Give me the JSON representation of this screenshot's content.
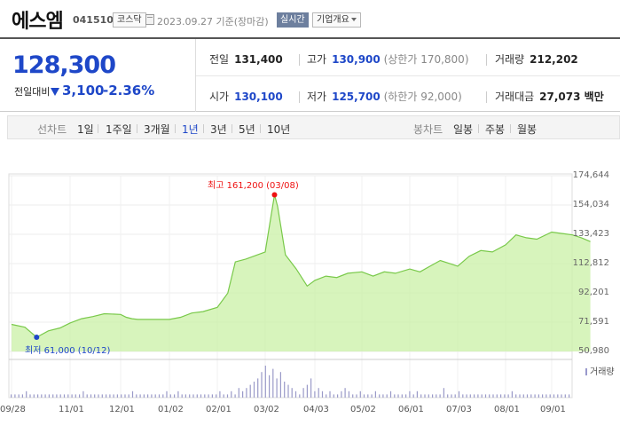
{
  "header": {
    "name": "에스엠",
    "code": "041510",
    "market": "코스닥",
    "date": "2023.09.27 기준(장마감)",
    "realtime": "실시간",
    "company": "기업개요"
  },
  "quote": {
    "price": "128,300",
    "diff_label": "전일대비",
    "diff": "3,100",
    "rate": "-2.36%",
    "direction": "down",
    "color_down": "#1e47c8"
  },
  "stats": {
    "prev_label": "전일",
    "prev": "131,400",
    "high_label": "고가",
    "high": "130,900",
    "upper": "(상한가 170,800)",
    "vol_label": "거래량",
    "vol": "212,202",
    "open_label": "시가",
    "open": "130,100",
    "low_label": "저가",
    "low": "125,700",
    "lower": "(하한가 92,000)",
    "amt_label": "거래대금",
    "amt": "27,073 백만"
  },
  "tabs": {
    "line_label": "선차트",
    "line": [
      "1일",
      "1주일",
      "3개월",
      "1년",
      "3년",
      "5년",
      "10년"
    ],
    "active": "1년",
    "candle_label": "봉차트",
    "candle": [
      "일봉",
      "주봉",
      "월봉"
    ]
  },
  "chart_data": {
    "type": "area",
    "period": "1년",
    "x_ticks": [
      "09/28",
      "11/01",
      "12/01",
      "01/02",
      "02/01",
      "03/02",
      "04/03",
      "05/02",
      "06/01",
      "07/03",
      "08/01",
      "09/01"
    ],
    "y_ticks": [
      "174,644",
      "154,034",
      "133,423",
      "112,812",
      "92,201",
      "71,591",
      "50,980"
    ],
    "ylim": [
      50980,
      174644
    ],
    "high_annotation": "최고 161,200 (03/08)",
    "low_annotation": "최저 61,000 (10/12)",
    "high": {
      "date": "03/08",
      "value": 161200
    },
    "low": {
      "date": "10/12",
      "value": 61000
    },
    "volume_label": "거래량",
    "price_series": [
      [
        "09/28",
        70000
      ],
      [
        "10/05",
        68000
      ],
      [
        "10/12",
        61000
      ],
      [
        "10/19",
        65500
      ],
      [
        "10/26",
        67500
      ],
      [
        "11/01",
        71000
      ],
      [
        "11/08",
        74000
      ],
      [
        "11/15",
        75500
      ],
      [
        "11/22",
        77500
      ],
      [
        "12/01",
        77000
      ],
      [
        "12/08",
        75000
      ],
      [
        "12/15",
        74000
      ],
      [
        "12/22",
        73500
      ],
      [
        "01/02",
        73500
      ],
      [
        "01/09",
        75000
      ],
      [
        "01/16",
        78000
      ],
      [
        "01/23",
        79000
      ],
      [
        "02/01",
        82000
      ],
      [
        "02/08",
        92000
      ],
      [
        "02/13",
        114000
      ],
      [
        "02/20",
        116000
      ],
      [
        "03/02",
        121000
      ],
      [
        "03/06",
        148000
      ],
      [
        "03/08",
        161200
      ],
      [
        "03/10",
        153000
      ],
      [
        "03/15",
        119000
      ],
      [
        "03/22",
        109000
      ],
      [
        "03/29",
        97000
      ],
      [
        "04/03",
        101000
      ],
      [
        "04/10",
        104000
      ],
      [
        "04/17",
        103000
      ],
      [
        "04/24",
        106000
      ],
      [
        "05/02",
        107000
      ],
      [
        "05/09",
        104000
      ],
      [
        "05/16",
        107000
      ],
      [
        "05/23",
        106000
      ],
      [
        "06/01",
        109000
      ],
      [
        "06/08",
        107000
      ],
      [
        "06/15",
        111000
      ],
      [
        "06/22",
        115000
      ],
      [
        "07/03",
        111000
      ],
      [
        "07/10",
        118000
      ],
      [
        "07/17",
        122000
      ],
      [
        "07/24",
        121000
      ],
      [
        "08/01",
        126000
      ],
      [
        "08/08",
        133000
      ],
      [
        "08/15",
        131000
      ],
      [
        "08/22",
        130000
      ],
      [
        "09/01",
        135000
      ],
      [
        "09/08",
        134000
      ],
      [
        "09/15",
        133000
      ],
      [
        "09/21",
        131000
      ],
      [
        "09/27",
        128300
      ]
    ],
    "volume_rel": [
      1,
      1,
      1,
      1,
      2,
      1,
      1,
      1,
      1,
      1,
      1,
      1,
      1,
      1,
      1,
      1,
      1,
      1,
      1,
      2,
      1,
      1,
      1,
      1,
      1,
      1,
      1,
      1,
      1,
      1,
      1,
      1,
      2,
      1,
      1,
      1,
      1,
      1,
      1,
      1,
      1,
      2,
      1,
      1,
      2,
      1,
      1,
      1,
      1,
      1,
      1,
      1,
      1,
      1,
      1,
      2,
      1,
      1,
      2,
      1,
      3,
      2,
      3,
      4,
      5,
      6,
      8,
      10,
      7,
      9,
      6,
      8,
      5,
      4,
      3,
      2,
      1,
      3,
      4,
      6,
      2,
      3,
      2,
      1,
      2,
      1,
      1,
      2,
      3,
      2,
      1,
      1,
      2,
      1,
      1,
      1,
      2,
      1,
      1,
      1,
      2,
      1,
      1,
      1,
      1,
      2,
      1,
      2,
      1,
      1,
      1,
      1,
      1,
      1,
      3,
      1,
      1,
      1,
      2,
      1,
      1,
      1,
      1,
      1,
      1,
      1,
      1,
      1,
      1,
      1,
      1,
      1,
      2,
      1,
      1,
      1,
      1,
      1,
      1,
      1,
      1,
      1,
      1,
      1,
      1,
      1,
      1,
      1
    ],
    "fill_color": "#c9f0a6",
    "line_color": "#79c94a"
  }
}
